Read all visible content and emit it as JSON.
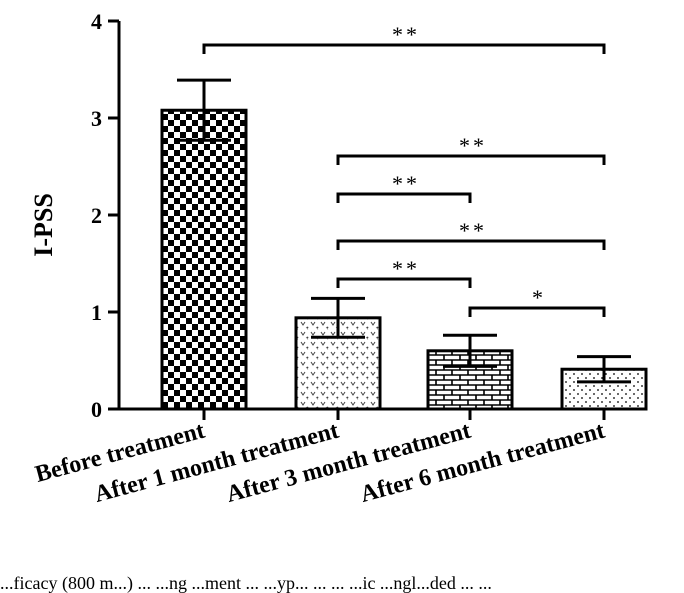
{
  "chart_data": {
    "type": "bar",
    "ylabel": "I-PSS",
    "ylim": [
      0,
      4
    ],
    "yticks": [
      0,
      1,
      2,
      3,
      4
    ],
    "categories": [
      "Before treatment",
      "After 1 month treatment",
      "After 3 month treatment",
      "After 6 month treatment"
    ],
    "values": [
      3.08,
      0.94,
      0.6,
      0.41
    ],
    "errors": [
      0.31,
      0.2,
      0.16,
      0.13
    ],
    "patterns": [
      "checkerboard",
      "dotted-v",
      "brick",
      "dots"
    ],
    "significance": [
      {
        "from": 0,
        "to": 3,
        "label": "**"
      },
      {
        "from": 1,
        "to": 3,
        "label": "**"
      },
      {
        "from": 1,
        "to": 2,
        "label": "**"
      },
      {
        "from": 1,
        "to": 3,
        "label": "**"
      },
      {
        "from": 1,
        "to": 2,
        "label": "**"
      },
      {
        "from": 2,
        "to": 3,
        "label": "*"
      }
    ]
  },
  "caption": "...ficacy (800 m...) ... ...ng ...ment ... ...yp... ... ... ...ic ...ngl...ded ... ..."
}
